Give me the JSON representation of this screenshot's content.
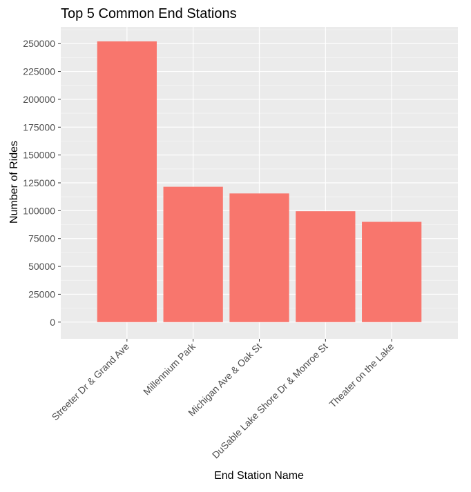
{
  "chart_data": {
    "type": "bar",
    "title": "Top 5 Common End Stations",
    "xlabel": "End Station Name",
    "ylabel": "Number of Rides",
    "categories": [
      "Streeter Dr & Grand Ave",
      "Millennium Park",
      "Michigan Ave & Oak St",
      "DuSable Lake Shore Dr & Monroe St",
      "Theater on the Lake"
    ],
    "values": [
      252000,
      121500,
      115500,
      99500,
      90000
    ],
    "yticks": [
      0,
      25000,
      50000,
      75000,
      100000,
      125000,
      150000,
      175000,
      200000,
      225000,
      250000
    ],
    "ylim": [
      -15000,
      265000
    ],
    "grid": true,
    "legend": "none",
    "colors": {
      "bar": "#F8766D",
      "panel": "#EBEBEB",
      "grid_major": "#FFFFFF",
      "grid_minor": "#F5F5F5",
      "text": "#000000",
      "tick_text": "#4D4D4D",
      "tick_mark": "#333333"
    }
  }
}
